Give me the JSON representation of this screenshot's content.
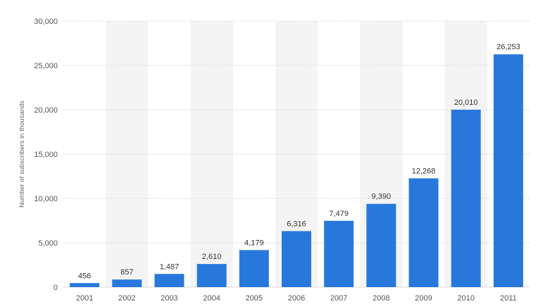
{
  "chart_data": {
    "type": "bar",
    "categories": [
      "2001",
      "2002",
      "2003",
      "2004",
      "2005",
      "2006",
      "2007",
      "2008",
      "2009",
      "2010",
      "2011"
    ],
    "values": [
      456,
      857,
      1487,
      2610,
      4179,
      6316,
      7479,
      9390,
      12268,
      20010,
      26253
    ],
    "value_labels": [
      "456",
      "857",
      "1,487",
      "2,610",
      "4,179",
      "6,316",
      "7,479",
      "9,390",
      "12,268",
      "20,010",
      "26,253"
    ],
    "ylabel": "Number of subscribers in thousands",
    "xlabel": "",
    "title": "",
    "ylim": [
      0,
      30000
    ],
    "y_ticks": [
      0,
      5000,
      10000,
      15000,
      20000,
      25000,
      30000
    ],
    "y_tick_labels": [
      "0",
      "5,000",
      "10,000",
      "15,000",
      "20,000",
      "25,000",
      "30,000"
    ],
    "grid": true,
    "legend": "none",
    "colors": {
      "bar": "#2878dc",
      "band": "#f4f4f4",
      "grid": "#d8d8d8"
    }
  }
}
